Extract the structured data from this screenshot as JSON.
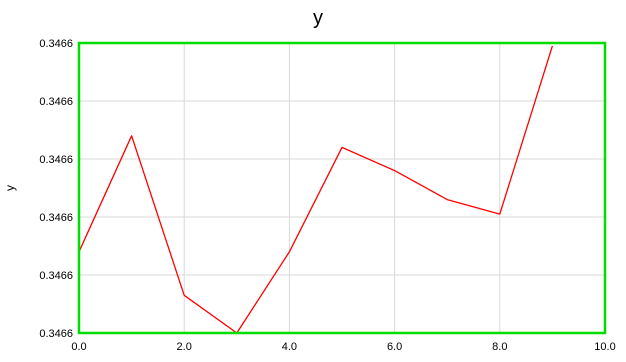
{
  "chart_data": {
    "type": "line",
    "title": "y",
    "xlabel": "",
    "ylabel": "y",
    "xlim": [
      0,
      10
    ],
    "ylim": [
      0,
      5
    ],
    "grid": true,
    "x_ticks": [
      "0.0",
      "2.0",
      "4.0",
      "6.0",
      "8.0",
      "10.0"
    ],
    "y_ticks": [
      "0.3466",
      "0.3466",
      "0.3466",
      "0.3466",
      "0.3466",
      "0.3466"
    ],
    "series": [
      {
        "x": [
          0,
          1,
          2,
          3,
          4,
          5,
          6,
          7,
          8,
          9
        ],
        "values": [
          1.4,
          3.4,
          0.65,
          0.0,
          1.4,
          3.2,
          2.8,
          2.3,
          2.05,
          4.95
        ],
        "color": "#ff0000"
      }
    ],
    "frame_color": "#00dd00",
    "grid_color": "#d9d9d9"
  }
}
